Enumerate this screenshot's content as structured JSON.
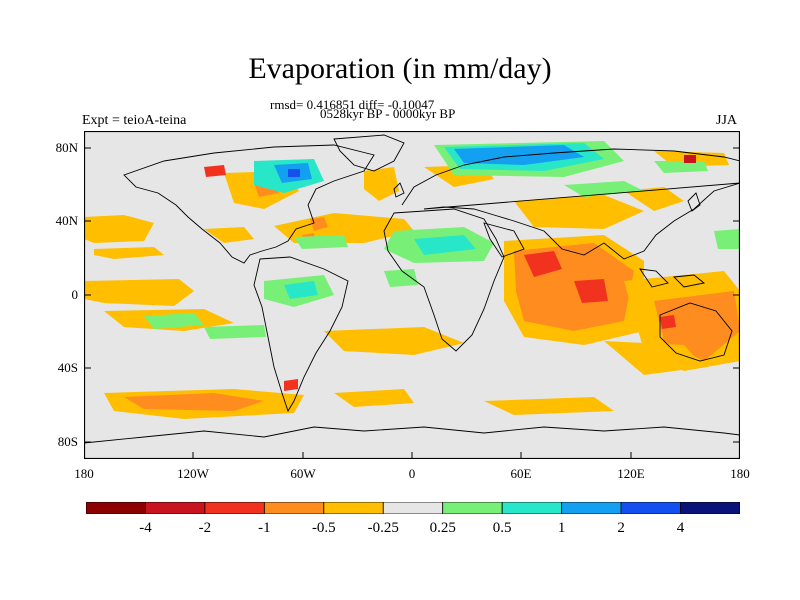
{
  "figure": {
    "title": "Evaporation (in mm/day)",
    "stats_line": "rmsd= 0.416851 diff= -0.10047",
    "period_line": "0528kyr BP - 0000kyr BP",
    "left_label": "Expt = teioA-teina",
    "right_label": "JJA"
  },
  "chart_data": {
    "type": "heatmap",
    "variable": "Evaporation difference",
    "units": "mm/day",
    "lat_ticks": [
      "80N",
      "40N",
      "0",
      "40S",
      "80S"
    ],
    "lon_ticks": [
      "180",
      "120W",
      "60W",
      "0",
      "60E",
      "120E",
      "180"
    ],
    "colorbar": {
      "labels": [
        "-4",
        "-2",
        "-1",
        "-0.5",
        "-0.25",
        "0.25",
        "0.5",
        "1",
        "2",
        "4"
      ],
      "colors": [
        "#8b0000",
        "#c8141e",
        "#f0321e",
        "#ff8c1e",
        "#ffbe00",
        "#e6e6e6",
        "#78f078",
        "#28e6c8",
        "#14a0f0",
        "#1450f0",
        "#0a1478"
      ]
    },
    "background_color": "#e6e6e6",
    "grid": false
  }
}
